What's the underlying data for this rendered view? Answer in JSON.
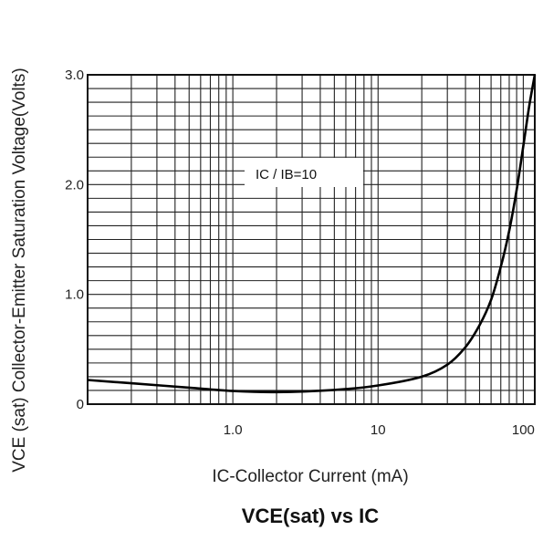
{
  "chart_data": {
    "type": "line",
    "title": "VCE(sat) vs IC",
    "xlabel": "IC-Collector Current  (mA)",
    "ylabel": "VCE (sat) Collector-Emitter Saturation Voltage(Volts)",
    "x_scale": "log",
    "xlim": [
      0.1,
      120
    ],
    "ylim": [
      0,
      3.0
    ],
    "x_ticks": [
      {
        "value": 1,
        "label": "1.0"
      },
      {
        "value": 10,
        "label": "10"
      },
      {
        "value": 100,
        "label": "100"
      }
    ],
    "y_ticks": [
      {
        "value": 0,
        "label": "0"
      },
      {
        "value": 1,
        "label": "1.0"
      },
      {
        "value": 2,
        "label": "2.0"
      },
      {
        "value": 3,
        "label": "3.0"
      }
    ],
    "grid": true,
    "annotation": "IC / IB=10",
    "series": [
      {
        "x": [
          0.1,
          0.2,
          0.5,
          1.0,
          2.0,
          5.0,
          10,
          20,
          30,
          40,
          50,
          60,
          70,
          80,
          90,
          100,
          110,
          120
        ],
        "y": [
          0.22,
          0.19,
          0.15,
          0.12,
          0.11,
          0.13,
          0.17,
          0.25,
          0.36,
          0.52,
          0.72,
          0.95,
          1.25,
          1.58,
          1.95,
          2.35,
          2.72,
          3.0
        ]
      }
    ]
  }
}
